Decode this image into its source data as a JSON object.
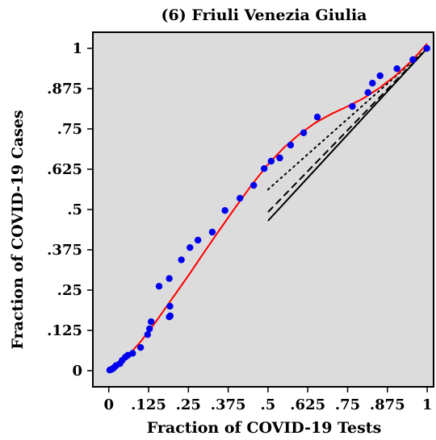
{
  "chart_data": {
    "type": "scatter",
    "title": "(6) Friuli Venezia Giulia",
    "xlabel": "Fraction of COVID-19 Tests",
    "ylabel": "Fraction of COVID-19 Cases",
    "xlim": [
      -0.05,
      1.02
    ],
    "ylim": [
      -0.05,
      1.05
    ],
    "x_ticks": [
      {
        "value": 0,
        "label": "0"
      },
      {
        "value": 0.125,
        "label": ".125"
      },
      {
        "value": 0.25,
        "label": ".25"
      },
      {
        "value": 0.375,
        "label": ".375"
      },
      {
        "value": 0.5,
        "label": ".5"
      },
      {
        "value": 0.625,
        "label": ".625"
      },
      {
        "value": 0.75,
        "label": ".75"
      },
      {
        "value": 0.875,
        "label": ".875"
      },
      {
        "value": 1,
        "label": "1"
      }
    ],
    "y_ticks": [
      {
        "value": 0,
        "label": "0"
      },
      {
        "value": 0.125,
        "label": ".125"
      },
      {
        "value": 0.25,
        "label": ".25"
      },
      {
        "value": 0.375,
        "label": ".375"
      },
      {
        "value": 0.5,
        "label": ".5"
      },
      {
        "value": 0.625,
        "label": ".625"
      },
      {
        "value": 0.75,
        "label": ".75"
      },
      {
        "value": 0.875,
        "label": ".875"
      },
      {
        "value": 1,
        "label": "1"
      }
    ],
    "background_color": "#dcdcdc",
    "points_color": "#0000ee",
    "curve_color": "#ff0000",
    "points": [
      [
        0.003,
        0.002
      ],
      [
        0.008,
        0.004
      ],
      [
        0.012,
        0.006
      ],
      [
        0.017,
        0.01
      ],
      [
        0.023,
        0.016
      ],
      [
        0.035,
        0.022
      ],
      [
        0.042,
        0.032
      ],
      [
        0.052,
        0.042
      ],
      [
        0.06,
        0.048
      ],
      [
        0.075,
        0.054
      ],
      [
        0.1,
        0.072
      ],
      [
        0.122,
        0.112
      ],
      [
        0.128,
        0.13
      ],
      [
        0.133,
        0.152
      ],
      [
        0.158,
        0.262
      ],
      [
        0.19,
        0.167
      ],
      [
        0.192,
        0.2
      ],
      [
        0.193,
        0.17
      ],
      [
        0.19,
        0.286
      ],
      [
        0.228,
        0.344
      ],
      [
        0.255,
        0.382
      ],
      [
        0.28,
        0.405
      ],
      [
        0.325,
        0.43
      ],
      [
        0.365,
        0.497
      ],
      [
        0.412,
        0.535
      ],
      [
        0.455,
        0.575
      ],
      [
        0.488,
        0.627
      ],
      [
        0.51,
        0.65
      ],
      [
        0.537,
        0.66
      ],
      [
        0.571,
        0.7
      ],
      [
        0.612,
        0.738
      ],
      [
        0.655,
        0.787
      ],
      [
        0.765,
        0.82
      ],
      [
        0.814,
        0.863
      ],
      [
        0.828,
        0.892
      ],
      [
        0.852,
        0.915
      ],
      [
        0.905,
        0.937
      ],
      [
        0.955,
        0.965
      ],
      [
        0.999,
        1.0
      ]
    ],
    "fit_curve": [
      [
        0,
        0
      ],
      [
        0.05,
        0.035
      ],
      [
        0.1,
        0.09
      ],
      [
        0.15,
        0.155
      ],
      [
        0.2,
        0.225
      ],
      [
        0.25,
        0.295
      ],
      [
        0.3,
        0.368
      ],
      [
        0.35,
        0.44
      ],
      [
        0.4,
        0.51
      ],
      [
        0.45,
        0.578
      ],
      [
        0.5,
        0.64
      ],
      [
        0.55,
        0.692
      ],
      [
        0.6,
        0.735
      ],
      [
        0.65,
        0.77
      ],
      [
        0.7,
        0.797
      ],
      [
        0.75,
        0.82
      ],
      [
        0.8,
        0.845
      ],
      [
        0.85,
        0.877
      ],
      [
        0.9,
        0.915
      ],
      [
        0.95,
        0.96
      ],
      [
        1.0,
        1.015
      ]
    ],
    "reference_lines": [
      {
        "style": "solid",
        "from": [
          0.5,
          0.465
        ],
        "to": [
          1.0,
          1.0
        ]
      },
      {
        "style": "dashed",
        "from": [
          0.5,
          0.492
        ],
        "to": [
          1.0,
          1.0
        ]
      },
      {
        "style": "dotted",
        "from": [
          0.5,
          0.562
        ],
        "to": [
          1.0,
          1.0
        ]
      }
    ]
  }
}
